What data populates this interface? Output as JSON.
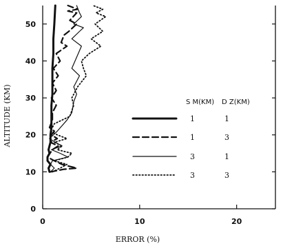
{
  "chart_data": {
    "type": "line",
    "orientation": "profile",
    "xlabel": "ERROR (%)",
    "ylabel": "ALTITUDE (KM)",
    "xlim": [
      0,
      24
    ],
    "ylim": [
      0,
      55
    ],
    "x_ticks": [
      0,
      10,
      20
    ],
    "y_ticks": [
      0,
      10,
      20,
      30,
      40,
      50
    ],
    "legend": {
      "placement": "center-right",
      "headers": [
        "S M(KM)",
        "D Z(KM)"
      ]
    },
    "series": [
      {
        "sm": "1",
        "dz": "1",
        "style": "solid-thick",
        "x": [
          0.7,
          0.6,
          0.8,
          0.5,
          0.5,
          0.7,
          0.6,
          0.7,
          0.8,
          0.8,
          0.9,
          0.9,
          0.9,
          1.0,
          1.0,
          1.0,
          1.1,
          1.1,
          1.2,
          1.3
        ],
        "y": [
          10,
          11,
          12,
          13,
          14,
          15,
          16,
          17,
          18,
          20,
          22,
          25,
          28,
          31,
          34,
          38,
          42,
          46,
          50,
          55
        ]
      },
      {
        "sm": "1",
        "dz": "3",
        "style": "dashed",
        "x": [
          0.8,
          2.2,
          3.5,
          2.0,
          1.2,
          0.5,
          1.0,
          1.6,
          0.8,
          1.5,
          0.9,
          1.2,
          0.7,
          1.0,
          1.0,
          1.4,
          0.9,
          1.4,
          1.0,
          1.6,
          1.1,
          1.8,
          1.4,
          2.5,
          1.9,
          2.2,
          2.7,
          3.5,
          2.8,
          3.5,
          2.6,
          3.6,
          2.6
        ],
        "y": [
          10,
          10.7,
          11,
          12,
          13,
          14,
          16,
          17,
          18,
          19,
          20,
          21,
          22,
          24,
          26,
          28,
          30,
          32,
          34,
          36,
          38,
          40,
          42,
          44,
          45,
          47,
          48,
          50,
          51,
          53,
          53.5,
          54,
          55
        ]
      },
      {
        "sm": "3",
        "dz": "1",
        "style": "solid-thin",
        "x": [
          0.8,
          1.2,
          0.8,
          1.0,
          2.6,
          1.8,
          0.9,
          2.0,
          1.3,
          0.7,
          1.5,
          2.5,
          3.0,
          3.2,
          3.5,
          3.2,
          3.8,
          3.0,
          3.5,
          4.0,
          3.0,
          3.8,
          4.2,
          3.2,
          4.0,
          3.8,
          3.5
        ],
        "y": [
          10,
          11,
          12,
          13,
          14,
          15,
          16,
          17,
          18,
          19,
          21,
          24,
          26,
          29,
          31,
          33,
          36,
          38,
          41,
          44,
          46,
          48,
          49,
          50,
          52,
          53,
          55
        ]
      },
      {
        "sm": "3",
        "dz": "3",
        "style": "dotted",
        "x": [
          1.0,
          1.8,
          2.5,
          1.2,
          2.6,
          3.0,
          1.5,
          2.0,
          1.2,
          2.5,
          1.5,
          0.8,
          1.2,
          2.8,
          3.2,
          3.0,
          3.6,
          4.5,
          4.2,
          4.0,
          4.8,
          6.0,
          5.0,
          6.2,
          5.4,
          6.5,
          5.5,
          6.2,
          5.2
        ],
        "y": [
          10,
          11,
          12,
          13,
          14,
          15,
          16,
          17,
          18,
          19,
          20,
          21,
          23,
          25,
          28,
          30,
          33,
          36,
          38,
          40,
          42,
          44,
          46,
          48,
          50,
          52,
          53,
          54,
          55
        ]
      }
    ]
  }
}
